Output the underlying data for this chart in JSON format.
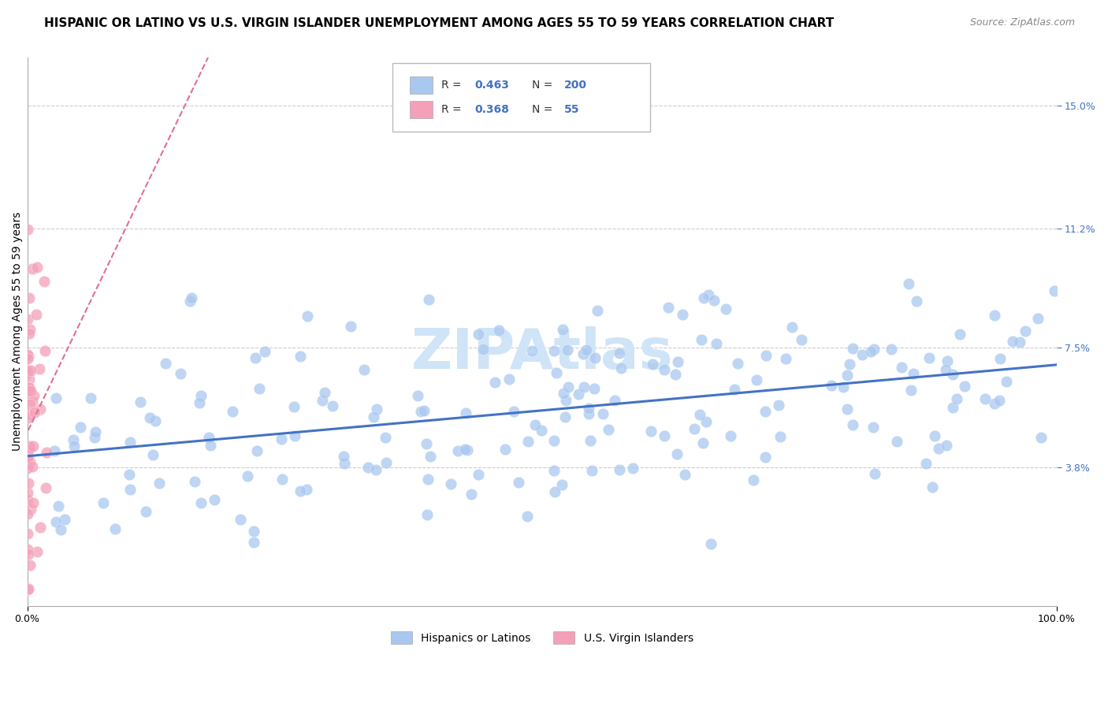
{
  "title": "HISPANIC OR LATINO VS U.S. VIRGIN ISLANDER UNEMPLOYMENT AMONG AGES 55 TO 59 YEARS CORRELATION CHART",
  "source": "Source: ZipAtlas.com",
  "ylabel": "Unemployment Among Ages 55 to 59 years",
  "y_tick_labels": [
    "3.8%",
    "7.5%",
    "11.2%",
    "15.0%"
  ],
  "y_tick_values": [
    0.038,
    0.075,
    0.112,
    0.15
  ],
  "blue_color": "#a8c8f0",
  "pink_color": "#f4a0b8",
  "blue_line_color": "#4472c4",
  "pink_line_color": "#e07090",
  "blue_R": 0.463,
  "pink_R": 0.368,
  "blue_n": 200,
  "pink_n": 55,
  "x_min": 0.0,
  "x_max": 1.0,
  "y_min": -0.005,
  "y_max": 0.165,
  "title_fontsize": 11,
  "source_fontsize": 9,
  "axis_label_fontsize": 10,
  "tick_label_fontsize": 9,
  "legend_fontsize": 10,
  "background_color": "#ffffff",
  "grid_color": "#cccccc",
  "watermark_color": "#d0e4f7",
  "watermark_fontsize": 52
}
